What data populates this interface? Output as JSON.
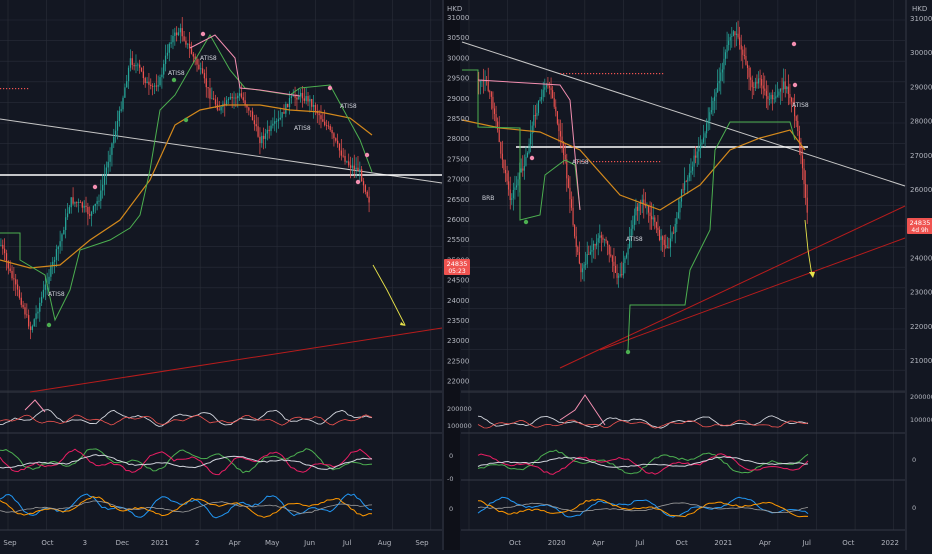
{
  "colors": {
    "background": "#131722",
    "grid": "#2a2e39",
    "up_candle": "#26a69a",
    "down_candle": "#ef5350",
    "trend_line": "#c7c7c7",
    "support_line": "#b71c1c",
    "price_level": "#ffffff",
    "ema": "#d4891c",
    "trailing_stop": "#4caf50",
    "projection": "#e8e34a"
  },
  "left_chart": {
    "price_ticks": [
      "31000",
      "30500",
      "30000",
      "29500",
      "29000",
      "28500",
      "28000",
      "27500",
      "27000",
      "26500",
      "26000",
      "25500",
      "25000",
      "24500",
      "24000",
      "23500",
      "23000",
      "22500",
      "22000"
    ],
    "price_badge": {
      "price": "24835",
      "timer": "05:23"
    },
    "time_labels": [
      "Sep",
      "Oct",
      "3",
      "Dec",
      "2021",
      "2",
      "Apr",
      "May",
      "Jun",
      "Jul",
      "Aug",
      "Sep"
    ],
    "signal_labels": [
      "ATIS8",
      "ATIS8",
      "ATIS8",
      "ATIS8",
      "ATIS8"
    ],
    "volume_ticks": [
      "200000",
      "100000"
    ],
    "osc1_ticks": [
      "0",
      "-0"
    ],
    "osc2_ticks": [
      "0"
    ]
  },
  "right_chart": {
    "currency": "HKD",
    "price_ticks": [
      "31000",
      "30000",
      "29000",
      "28000",
      "27000",
      "26000",
      "25000",
      "24000",
      "23000",
      "22000",
      "21000"
    ],
    "price_badge": {
      "price": "24835",
      "timer": "4d 9h"
    },
    "time_labels": [
      "Oct",
      "2020",
      "Apr",
      "Jul",
      "Oct",
      "2021",
      "Apr",
      "Jul",
      "Oct",
      "2022"
    ],
    "signal_labels": [
      "BRB",
      "ATIS8",
      "ATIS8",
      "ATIS8"
    ],
    "volume_ticks": [
      "2000000",
      "1000000"
    ],
    "osc1_ticks": [
      "0"
    ],
    "osc2_ticks": [
      "0"
    ]
  }
}
